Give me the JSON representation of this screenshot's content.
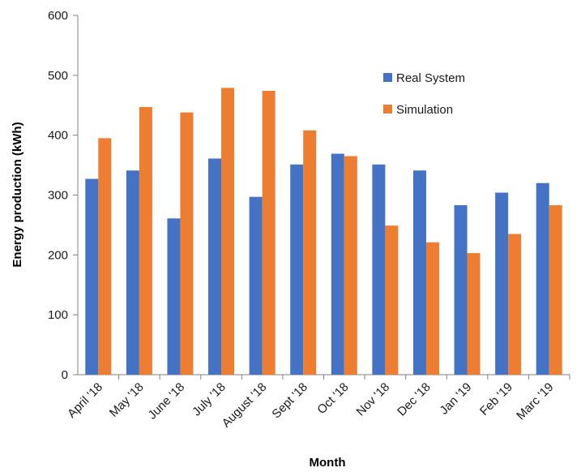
{
  "chart_data": {
    "type": "bar",
    "categories": [
      "April '18",
      "May '18",
      "June '18",
      "July '18",
      "August '18",
      "Sept '18",
      "Oct '18",
      "Nov '18",
      "Dec '18",
      "Jan '19",
      "Feb '19",
      "Marc '19"
    ],
    "series": [
      {
        "name": "Real System",
        "color": "#4472C4",
        "values": [
          327,
          341,
          261,
          361,
          297,
          351,
          369,
          351,
          341,
          283,
          304,
          320
        ]
      },
      {
        "name": "Simulation",
        "color": "#ED7D31",
        "values": [
          395,
          447,
          438,
          479,
          474,
          408,
          365,
          249,
          221,
          203,
          235,
          283
        ]
      }
    ],
    "xlabel": "Month",
    "ylabel": "Energy production  (kWh)",
    "ylim": [
      0,
      600
    ],
    "yticks": [
      "0",
      "100",
      "200",
      "300",
      "400",
      "500",
      "600"
    ],
    "grid": false,
    "legend_position": "top-right"
  }
}
